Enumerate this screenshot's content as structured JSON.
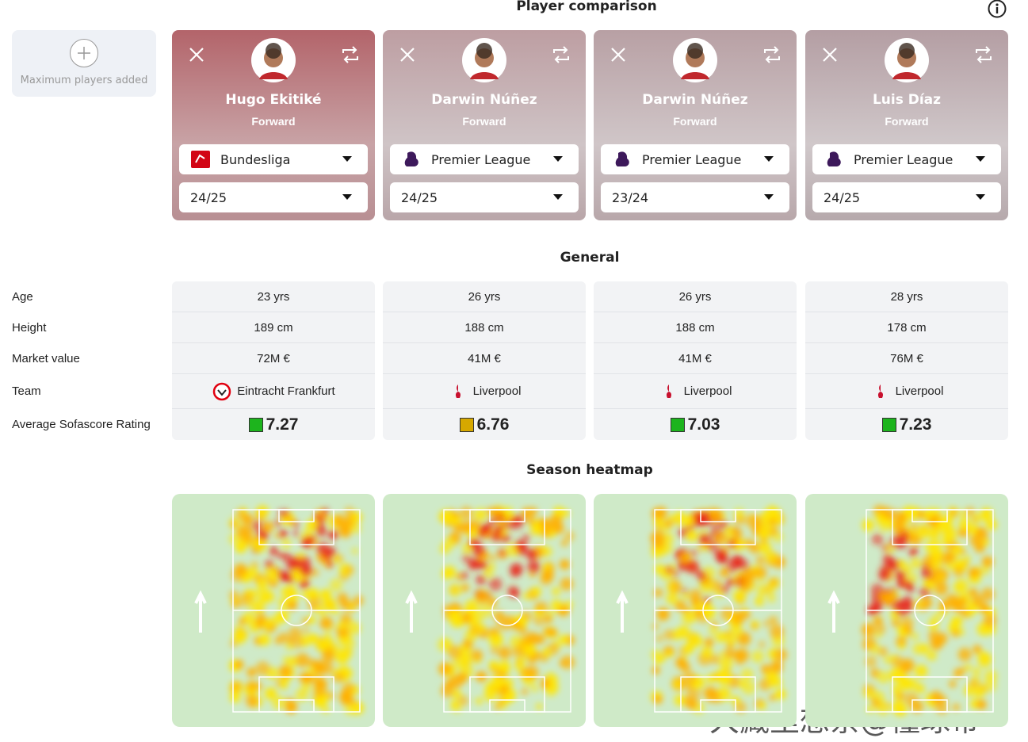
{
  "header": {
    "title": "Player comparison"
  },
  "add_slot": {
    "label": "Maximum players added"
  },
  "players": [
    {
      "name": "Hugo Ekitiké",
      "position": "Forward",
      "league": "Bundesliga",
      "season": "24/25"
    },
    {
      "name": "Darwin Núñez",
      "position": "Forward",
      "league": "Premier League",
      "season": "24/25"
    },
    {
      "name": "Darwin Núñez",
      "position": "Forward",
      "league": "Premier League",
      "season": "23/24"
    },
    {
      "name": "Luis Díaz",
      "position": "Forward",
      "league": "Premier League",
      "season": "24/25"
    }
  ],
  "general": {
    "title": "General",
    "row_labels": [
      "Age",
      "Height",
      "Market value",
      "Team",
      "Average Sofascore Rating"
    ],
    "columns": [
      {
        "age": "23 yrs",
        "height": "189 cm",
        "market_value": "72M €",
        "team": "Eintracht Frankfurt",
        "rating": 7.27,
        "rating_color": "#1db41d"
      },
      {
        "age": "26 yrs",
        "height": "188 cm",
        "market_value": "41M €",
        "team": "Liverpool",
        "rating": 6.76,
        "rating_color": "#d6a800"
      },
      {
        "age": "26 yrs",
        "height": "188 cm",
        "market_value": "41M €",
        "team": "Liverpool",
        "rating": 7.03,
        "rating_color": "#1db41d"
      },
      {
        "age": "28 yrs",
        "height": "178 cm",
        "market_value": "76M €",
        "team": "Liverpool",
        "rating": 7.23,
        "rating_color": "#1db41d"
      }
    ]
  },
  "heatmap": {
    "title": "Season heatmap"
  },
  "watermark": "大藏里想奈@懂球帝"
}
